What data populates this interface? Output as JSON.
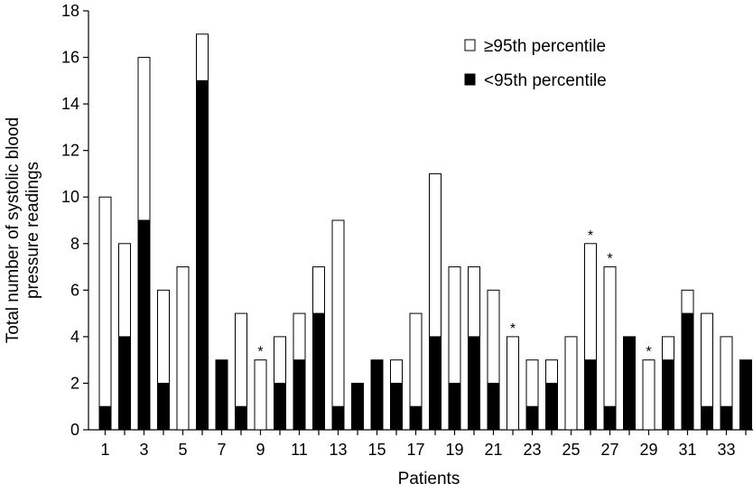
{
  "chart_data": {
    "type": "bar",
    "stacked": true,
    "xlabel": "Patients",
    "ylabel_lines": [
      "Total number of systolic blood",
      "pressure readings"
    ],
    "ylim": [
      0,
      18
    ],
    "yticks": [
      0,
      2,
      4,
      6,
      8,
      10,
      12,
      14,
      16,
      18
    ],
    "xtick_labels": [
      "1",
      "3",
      "5",
      "7",
      "9",
      "11",
      "13",
      "15",
      "17",
      "19",
      "21",
      "23",
      "25",
      "27",
      "29",
      "31",
      "33"
    ],
    "categories": [
      "1",
      "2",
      "3",
      "4",
      "5",
      "6",
      "7",
      "8",
      "9",
      "10",
      "11",
      "12",
      "13",
      "14",
      "15",
      "16",
      "17",
      "18",
      "19",
      "20",
      "21",
      "22",
      "23",
      "24",
      "25",
      "26",
      "27",
      "28",
      "29",
      "30",
      "31",
      "32",
      "33",
      "34"
    ],
    "series": [
      {
        "name": "<95th percentile",
        "color": "#000000",
        "values": [
          1,
          4,
          9,
          2,
          0,
          15,
          3,
          1,
          0,
          2,
          3,
          5,
          1,
          2,
          3,
          2,
          1,
          4,
          2,
          4,
          2,
          0,
          1,
          2,
          0,
          3,
          1,
          4,
          0,
          3,
          5,
          1,
          1,
          3
        ]
      },
      {
        "name": "≥95th percentile",
        "color": "#ffffff",
        "values": [
          9,
          4,
          7,
          4,
          7,
          2,
          0,
          4,
          3,
          2,
          2,
          2,
          8,
          0,
          0,
          1,
          4,
          7,
          5,
          3,
          4,
          4,
          2,
          1,
          4,
          5,
          6,
          0,
          3,
          1,
          1,
          4,
          3,
          0
        ]
      }
    ],
    "annotations": [
      {
        "patient": "9",
        "text": "*"
      },
      {
        "patient": "22",
        "text": "*"
      },
      {
        "patient": "26",
        "text": "*"
      },
      {
        "patient": "27",
        "text": "*"
      },
      {
        "patient": "29",
        "text": "*"
      }
    ],
    "legend_position": "top-right",
    "grid": false
  }
}
